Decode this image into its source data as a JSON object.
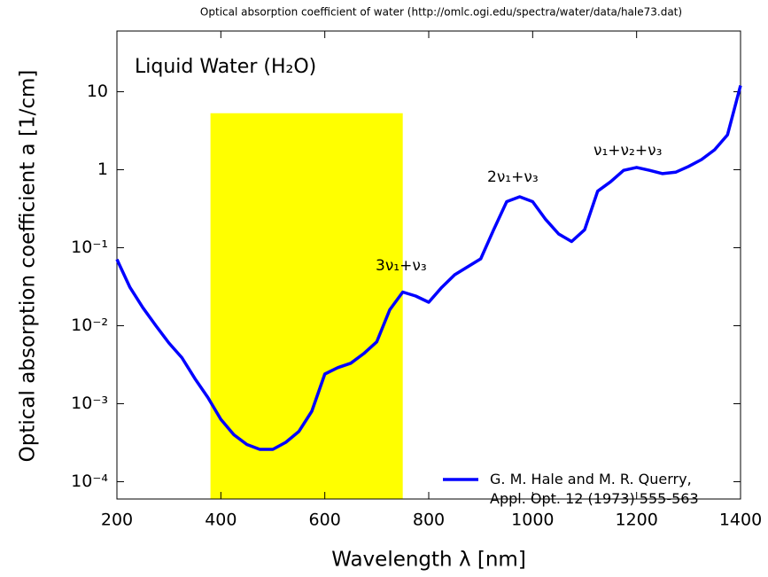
{
  "chart_data": {
    "type": "line",
    "source_note": "Optical absorption coefficient of water (http://omlc.ogi.edu/spectra/water/data/hale73.dat)",
    "title": "Liquid Water (H₂O)",
    "xlabel": "Wavelength λ [nm]",
    "ylabel": "Optical absorption coefficient a [1/cm]",
    "log_y": true,
    "xlim": [
      200,
      1400
    ],
    "xticks": [
      200,
      400,
      600,
      800,
      1000,
      1200,
      1400
    ],
    "ylim": [
      6e-05,
      60
    ],
    "yticks": [
      10,
      1,
      {
        "value": 0.1,
        "label": "10⁻¹"
      },
      {
        "value": 0.01,
        "label": "10⁻²"
      },
      {
        "value": 0.001,
        "label": "10⁻³"
      },
      {
        "value": 0.0001,
        "label": "10⁻⁴"
      }
    ],
    "legend": "lower right",
    "highlight": {
      "xrange": [
        380,
        750
      ],
      "ytop": 5.3,
      "color": "#ffff00"
    },
    "annotations": [
      "3ν₁+ν₃",
      "2ν₁+ν₃",
      "ν₁+ν₂+ν₃"
    ],
    "series": [
      {
        "name": "G. M. Hale and M. R. Querry, Appl. Opt. 12 (1973) 555-563",
        "color": "#0000ff",
        "x": [
          200,
          225,
          250,
          275,
          300,
          325,
          350,
          375,
          400,
          425,
          450,
          475,
          500,
          525,
          550,
          575,
          600,
          625,
          650,
          675,
          700,
          725,
          750,
          775,
          800,
          825,
          850,
          875,
          900,
          925,
          950,
          975,
          1000,
          1025,
          1050,
          1075,
          1100,
          1125,
          1150,
          1175,
          1200,
          1225,
          1250,
          1275,
          1300,
          1325,
          1350,
          1375,
          1400
        ],
        "values": [
          0.071,
          0.031,
          0.017,
          0.01,
          0.006,
          0.0039,
          0.0021,
          0.0012,
          0.00063,
          0.0004,
          0.0003,
          0.00026,
          0.00026,
          0.00032,
          0.00044,
          0.0008,
          0.0024,
          0.0029,
          0.0033,
          0.0044,
          0.0062,
          0.016,
          0.027,
          0.024,
          0.02,
          0.031,
          0.045,
          0.057,
          0.072,
          0.17,
          0.39,
          0.45,
          0.39,
          0.23,
          0.15,
          0.12,
          0.17,
          0.53,
          0.7,
          0.98,
          1.07,
          0.98,
          0.89,
          0.93,
          1.1,
          1.35,
          1.8,
          2.8,
          12
        ]
      }
    ]
  }
}
